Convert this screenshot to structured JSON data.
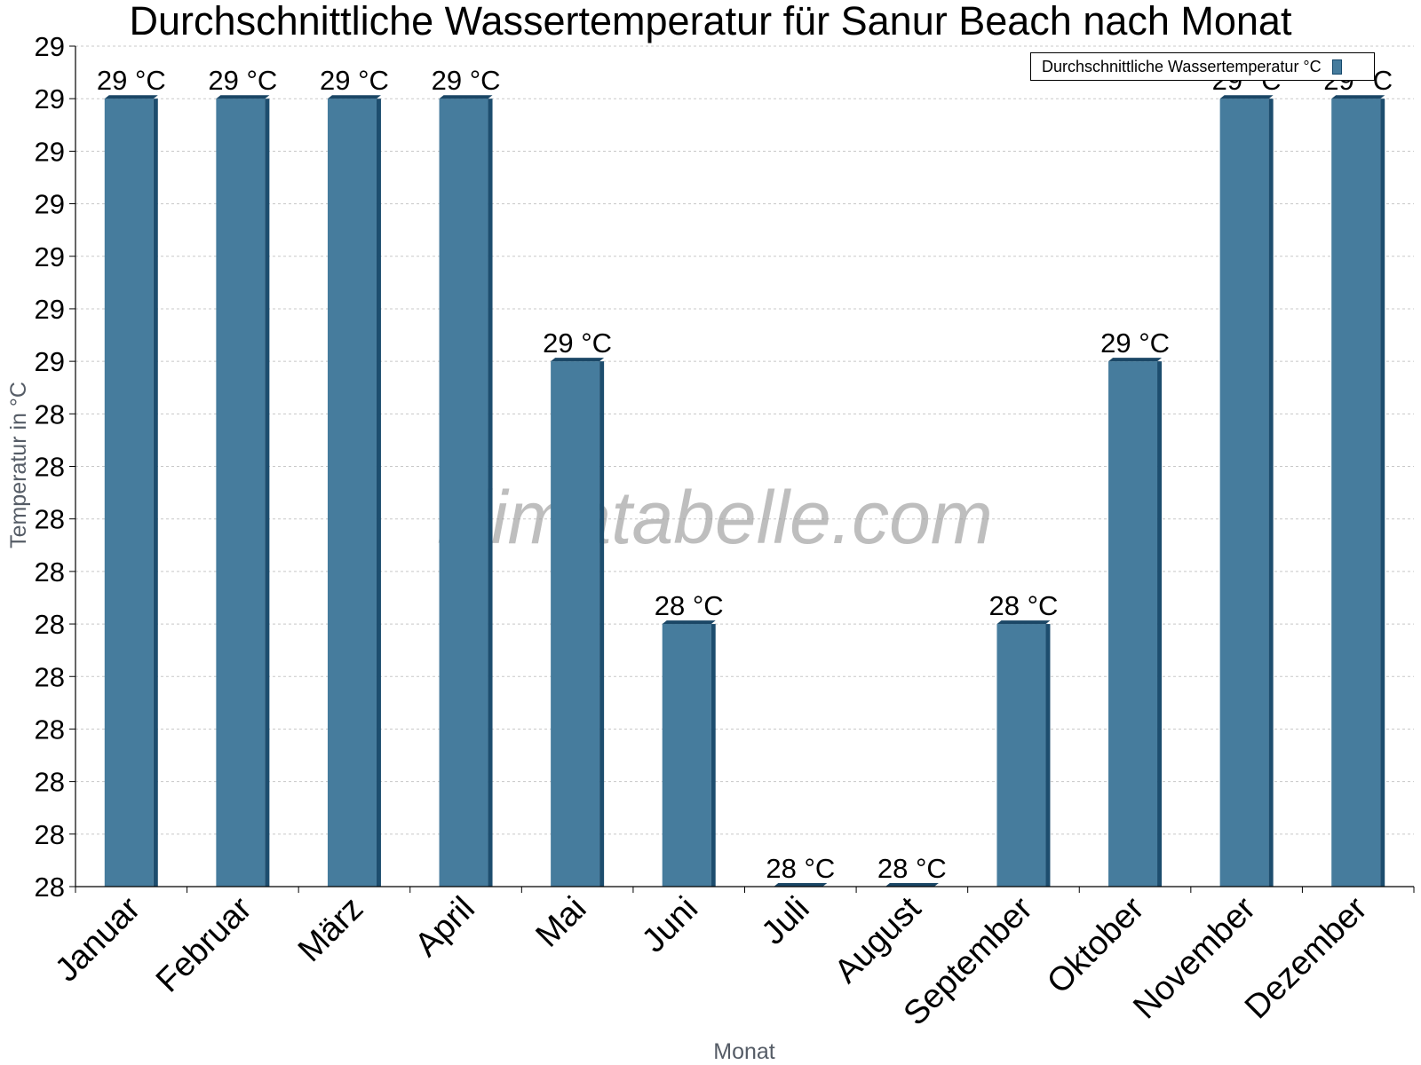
{
  "chart_data": {
    "type": "bar",
    "title": "Durchschnittliche Wassertemperatur für Sanur Beach nach Monat",
    "xlabel": "Monat",
    "ylabel": "Temperatur in °C",
    "categories": [
      "Januar",
      "Februar",
      "März",
      "April",
      "Mai",
      "Juni",
      "Juli",
      "August",
      "September",
      "Oktober",
      "November",
      "Dezember"
    ],
    "series": [
      {
        "name": "Durchschnittliche Wassertemperatur °C",
        "values": [
          28.75,
          28.75,
          28.75,
          28.75,
          28.5,
          28.25,
          28.0,
          28.0,
          28.25,
          28.5,
          28.75,
          28.75
        ],
        "labels": [
          "29 °C",
          "29 °C",
          "29 °C",
          "29 °C",
          "29 °C",
          "28 °C",
          "28 °C",
          "28 °C",
          "28 °C",
          "29 °C",
          "29 °C",
          "29 °C"
        ]
      }
    ],
    "y_ticks": [
      28.0,
      28.05,
      28.1,
      28.15,
      28.2,
      28.25,
      28.3,
      28.35,
      28.4,
      28.45,
      28.5,
      28.55,
      28.6,
      28.65,
      28.7,
      28.75,
      28.8
    ],
    "y_tick_labels": [
      "28",
      "28",
      "28",
      "28",
      "28",
      "28",
      "28",
      "28",
      "28",
      "28",
      "29",
      "29",
      "29",
      "29",
      "29",
      "29",
      "29"
    ],
    "ylim": [
      28.0,
      28.8
    ],
    "grid": true,
    "legend_position": "top-right",
    "watermark": "klimatabelle.com",
    "colors": {
      "bar_front": "#467c9d",
      "bar_side": "#1d4d6e",
      "bar_top": "#1b4766",
      "grid": "#c8c8c8",
      "axis": "#000000",
      "axis_title": "#555c66"
    }
  }
}
